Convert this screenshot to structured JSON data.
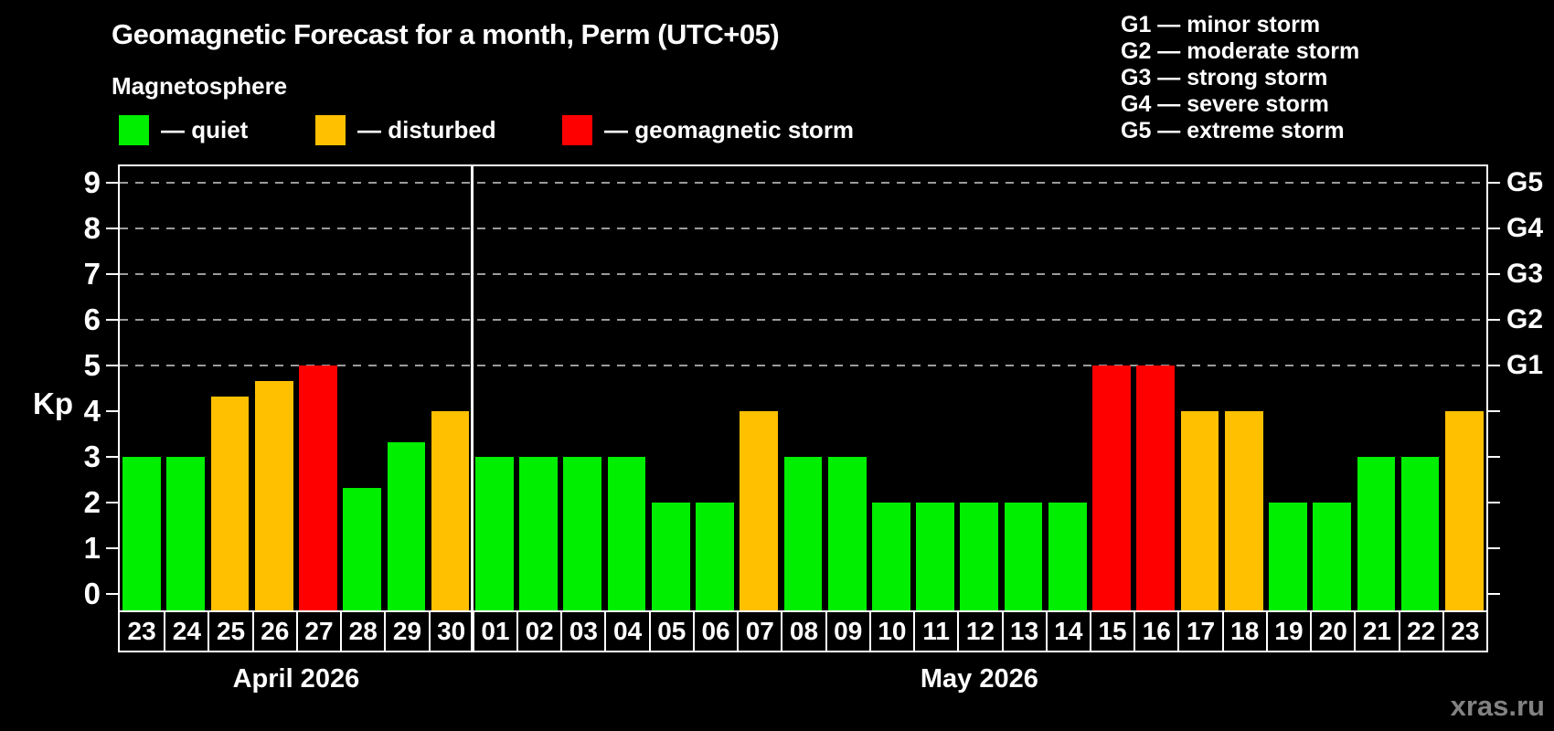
{
  "header": {
    "title": "Geomagnetic Forecast for a month, Perm (UTC+05)",
    "subtitle": "Magnetosphere",
    "legend": [
      {
        "key": "quiet",
        "label": "— quiet"
      },
      {
        "key": "disturbed",
        "label": "— disturbed"
      },
      {
        "key": "storm",
        "label": "— geomagnetic storm"
      }
    ],
    "g_scale_legend": [
      "G1 — minor storm",
      "G2 — moderate storm",
      "G3 — strong storm",
      "G4 — severe storm",
      "G5 — extreme storm"
    ]
  },
  "watermark": "xras.ru",
  "colors": {
    "quiet": "#00ee00",
    "disturbed": "#ffc000",
    "storm": "#ff0000",
    "grid": "#9b9b9b",
    "axis": "#ffffff",
    "watermark": "#828282"
  },
  "chart_data": {
    "type": "bar",
    "title": "Geomagnetic Forecast for a month, Perm (UTC+05)",
    "ylabel": "Kp",
    "xlabel": "",
    "ylim": [
      0,
      9
    ],
    "yticks": [
      0,
      1,
      2,
      3,
      4,
      5,
      6,
      7,
      8,
      9
    ],
    "gridlines_at": [
      5,
      6,
      7,
      8,
      9
    ],
    "grid": "dashed-horizontal",
    "legend_position": "top",
    "right_axis": [
      {
        "label": "G1",
        "kp": 5
      },
      {
        "label": "G2",
        "kp": 6
      },
      {
        "label": "G3",
        "kp": 7
      },
      {
        "label": "G4",
        "kp": 8
      },
      {
        "label": "G5",
        "kp": 9
      }
    ],
    "months": [
      {
        "label": "April 2026",
        "days": 8
      },
      {
        "label": "May 2026",
        "days": 23
      }
    ],
    "categories": [
      "23",
      "24",
      "25",
      "26",
      "27",
      "28",
      "29",
      "30",
      "01",
      "02",
      "03",
      "04",
      "05",
      "06",
      "07",
      "08",
      "09",
      "10",
      "11",
      "12",
      "13",
      "14",
      "15",
      "16",
      "17",
      "18",
      "19",
      "20",
      "21",
      "22",
      "23"
    ],
    "values": [
      3,
      3,
      4.33,
      4.67,
      5,
      2.33,
      3.33,
      4,
      3,
      3,
      3,
      3,
      2,
      2,
      4,
      3,
      3,
      2,
      2,
      2,
      2,
      2,
      5,
      5,
      4,
      4,
      2,
      2,
      3,
      3,
      4
    ],
    "status": [
      "quiet",
      "quiet",
      "disturbed",
      "disturbed",
      "storm",
      "quiet",
      "quiet",
      "disturbed",
      "quiet",
      "quiet",
      "quiet",
      "quiet",
      "quiet",
      "quiet",
      "disturbed",
      "quiet",
      "quiet",
      "quiet",
      "quiet",
      "quiet",
      "quiet",
      "quiet",
      "storm",
      "storm",
      "disturbed",
      "disturbed",
      "quiet",
      "quiet",
      "quiet",
      "quiet",
      "disturbed"
    ]
  }
}
